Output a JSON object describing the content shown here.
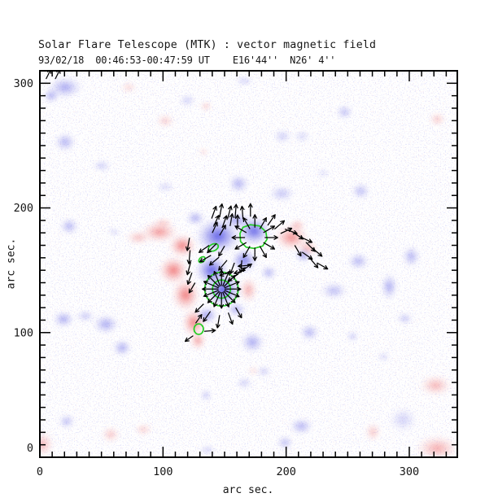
{
  "chart_data": {
    "type": "heatmap",
    "title": "Solar Flare Telescope (MTK) : vector magnetic field",
    "subtitle": "93/02/18  00:46:53-00:47:59 UT    E16'44''  N26' 4''",
    "xlabel": "arc sec.",
    "ylabel": "arc sec.",
    "xlim": [
      0,
      339
    ],
    "ylim": [
      0,
      310
    ],
    "x_ticks": [
      0,
      100,
      200,
      300
    ],
    "y_ticks": [
      0,
      100,
      200,
      300
    ],
    "minor_tick_step": 10,
    "colors": {
      "positive_polarity": "#ee5050",
      "negative_polarity": "#4444e4",
      "contour": "#22cc22",
      "vectors": "#000000",
      "axis": "#000000",
      "background": "#ffffff"
    },
    "region_format": [
      "x_arcsec",
      "y_arcsec",
      "rx_arcsec",
      "ry_arcsec",
      "intensity_0_1"
    ],
    "positive_regions": [
      [
        72.1,
        296.7,
        7,
        5,
        0.3
      ],
      [
        134.9,
        281.6,
        5,
        4,
        0.4
      ],
      [
        101.9,
        269.8,
        8,
        6,
        0.35
      ],
      [
        132.9,
        244.9,
        4,
        3.5,
        0.3
      ],
      [
        322.8,
        271.1,
        7,
        6,
        0.4
      ],
      [
        321.4,
        57.6,
        14,
        9,
        0.5
      ],
      [
        322.8,
        7.2,
        19,
        11,
        0.55
      ],
      [
        2,
        10.5,
        10,
        11,
        0.5
      ],
      [
        57.5,
        18.3,
        8,
        7,
        0.4
      ],
      [
        84,
        22.3,
        8,
        5,
        0.35
      ],
      [
        270.5,
        20.3,
        7,
        8,
        0.4
      ],
      [
        173.3,
        69.4,
        5,
        4,
        0.25
      ],
      [
        97.2,
        180.7,
        16,
        9,
        0.7
      ],
      [
        115.7,
        169.6,
        12,
        10,
        0.85
      ],
      [
        108.5,
        150,
        13,
        12,
        0.88
      ],
      [
        118.4,
        130.3,
        12,
        14,
        0.88
      ],
      [
        125,
        108,
        10,
        12,
        0.85
      ],
      [
        80,
        176.2,
        11,
        6,
        0.45
      ],
      [
        128.3,
        93.6,
        7,
        8,
        0.65
      ],
      [
        100,
        188,
        9,
        4,
        0.4
      ],
      [
        204.4,
        176.2,
        15,
        11,
        0.75
      ],
      [
        217.6,
        167.6,
        9,
        7,
        0.55
      ],
      [
        209,
        186,
        7,
        5,
        0.5
      ],
      [
        169.3,
        134.2,
        8,
        11,
        0.55
      ]
    ],
    "negative_regions": [
      [
        20.5,
        296.7,
        14.5,
        9,
        0.5
      ],
      [
        9.3,
        290.1,
        7,
        6,
        0.5
      ],
      [
        20.5,
        252.8,
        9,
        8,
        0.45
      ],
      [
        50.3,
        233.8,
        8,
        5,
        0.3
      ],
      [
        101.9,
        216.8,
        8,
        4.5,
        0.25
      ],
      [
        23.8,
        185.3,
        8,
        7,
        0.45
      ],
      [
        161.4,
        219.4,
        9,
        8,
        0.45
      ],
      [
        119.7,
        286.2,
        7,
        5,
        0.3
      ],
      [
        166,
        301.9,
        8,
        4,
        0.3
      ],
      [
        197.1,
        257.4,
        8,
        6,
        0.3
      ],
      [
        213,
        257.4,
        7,
        5,
        0.25
      ],
      [
        247.4,
        277,
        7,
        6,
        0.4
      ],
      [
        196.4,
        211.5,
        11,
        7,
        0.35
      ],
      [
        260.6,
        213.5,
        8,
        7,
        0.4
      ],
      [
        230.2,
        227.9,
        6,
        4,
        0.2
      ],
      [
        301.6,
        161.1,
        7.5,
        9,
        0.45
      ],
      [
        283.7,
        136.9,
        7,
        11,
        0.5
      ],
      [
        258.6,
        157.2,
        9,
        7,
        0.45
      ],
      [
        238.8,
        133.6,
        11.5,
        7,
        0.4
      ],
      [
        296.3,
        111.3,
        7,
        5,
        0.35
      ],
      [
        218.9,
        100.2,
        8,
        7,
        0.45
      ],
      [
        254,
        96.9,
        5,
        4.5,
        0.35
      ],
      [
        279.1,
        80.5,
        5.5,
        4,
        0.25
      ],
      [
        172.6,
        92.3,
        10,
        9,
        0.5
      ],
      [
        181.9,
        68.8,
        6,
        5,
        0.3
      ],
      [
        166,
        59.6,
        7,
        5,
        0.3
      ],
      [
        134.9,
        49.8,
        5,
        5,
        0.35
      ],
      [
        212.3,
        24.9,
        10,
        7,
        0.45
      ],
      [
        199.1,
        11.8,
        7,
        6,
        0.4
      ],
      [
        136.2,
        5.9,
        7,
        4,
        0.3
      ],
      [
        295,
        30.1,
        12,
        11,
        0.25
      ],
      [
        19.2,
        110.7,
        9,
        7,
        0.5
      ],
      [
        53.6,
        106.7,
        11,
        8,
        0.5
      ],
      [
        66.8,
        87.8,
        8,
        7,
        0.5
      ],
      [
        37,
        113.3,
        8,
        5,
        0.35
      ],
      [
        21.8,
        28.8,
        7,
        6,
        0.4
      ],
      [
        60.2,
        180.7,
        5,
        4,
        0.25
      ],
      [
        214,
        162,
        7,
        6,
        0.55
      ],
      [
        144.8,
        177.5,
        19,
        15,
        0.9
      ],
      [
        173.9,
        181.4,
        14,
        12,
        0.88
      ],
      [
        139.6,
        150,
        14,
        13,
        0.92
      ],
      [
        148.8,
        134.2,
        15,
        14,
        0.92
      ],
      [
        166,
        157.8,
        11,
        10,
        0.75
      ],
      [
        135.6,
        114,
        9,
        7,
        0.6
      ],
      [
        126.3,
        191.9,
        8,
        6,
        0.5
      ],
      [
        185.8,
        148,
        7,
        6,
        0.45
      ],
      [
        159.4,
        118.5,
        8,
        6,
        0.5
      ],
      [
        160,
        190,
        12,
        6,
        0.6
      ]
    ],
    "contours": [
      {
        "shape": "ellipse",
        "x": 147.5,
        "y": 134.9,
        "rx": 13.6,
        "ry": 13.6,
        "rot": 0
      },
      {
        "shape": "ellipse",
        "x": 147.5,
        "y": 134.9,
        "rx": 7.3,
        "ry": 7.3,
        "rot": 0
      },
      {
        "shape": "polygon",
        "points": [
          [
            165,
            184.5
          ],
          [
            171,
            186.5
          ],
          [
            178.5,
            185.5
          ],
          [
            183.5,
            181
          ],
          [
            184.5,
            175
          ],
          [
            181,
            169.5
          ],
          [
            174,
            167.5
          ],
          [
            167.5,
            168.5
          ],
          [
            163,
            173
          ],
          [
            162.5,
            179.5
          ]
        ]
      },
      {
        "shape": "ellipse",
        "x": 140.9,
        "y": 168.3,
        "rx": 4.2,
        "ry": 2.7,
        "rot": -25
      },
      {
        "shape": "ellipse",
        "x": 131.6,
        "y": 158.5,
        "rx": 2.9,
        "ry": 1.9,
        "rot": -40
      },
      {
        "shape": "ellipse",
        "x": 129,
        "y": 102.8,
        "rx": 3.8,
        "ry": 4.2,
        "rot": 0
      }
    ],
    "vector_format": [
      "x_arcsec",
      "y_arcsec",
      "angle_deg_ccw_from_east",
      "length_arcsec"
    ],
    "vectors": [
      [
        150,
        134.9,
        0,
        12.5
      ],
      [
        149.8,
        135.9,
        22,
        12.5
      ],
      [
        149.3,
        136.7,
        45,
        12.5
      ],
      [
        148.5,
        137.2,
        67,
        12.5
      ],
      [
        147.5,
        137.4,
        90,
        12.5
      ],
      [
        146.5,
        137.2,
        112,
        12.5
      ],
      [
        145.7,
        136.7,
        135,
        12.5
      ],
      [
        145.2,
        135.9,
        157,
        12.5
      ],
      [
        145,
        134.9,
        180,
        12.5
      ],
      [
        145.2,
        133.9,
        202,
        12.5
      ],
      [
        145.7,
        133.1,
        225,
        12.5
      ],
      [
        146.5,
        132.6,
        247,
        12.5
      ],
      [
        147.5,
        132.4,
        270,
        12.5
      ],
      [
        148.5,
        132.6,
        292,
        12.5
      ],
      [
        149.3,
        133.1,
        315,
        12.5
      ],
      [
        149.8,
        133.9,
        337,
        12.5
      ],
      [
        182.6,
        176.2,
        0,
        10
      ],
      [
        181.5,
        180.2,
        30,
        10
      ],
      [
        178.6,
        183.1,
        60,
        10
      ],
      [
        174.6,
        184.2,
        90,
        10
      ],
      [
        170.6,
        183.1,
        120,
        10
      ],
      [
        167.7,
        180.2,
        150,
        10
      ],
      [
        166.6,
        176.2,
        180,
        10
      ],
      [
        167.7,
        172.2,
        210,
        10
      ],
      [
        170.6,
        169.3,
        240,
        10
      ],
      [
        174.6,
        168.2,
        270,
        10
      ],
      [
        178.6,
        169.3,
        300,
        10
      ],
      [
        181.5,
        172.2,
        330,
        10
      ],
      [
        139.5,
        191.5,
        70,
        10
      ],
      [
        146,
        192.5,
        80,
        10.5
      ],
      [
        152.5,
        191.5,
        75,
        10
      ],
      [
        158.5,
        192,
        85,
        10.5
      ],
      [
        165,
        191,
        95,
        10
      ],
      [
        171,
        193,
        90,
        10
      ],
      [
        141,
        185,
        65,
        9.5
      ],
      [
        148,
        184,
        70,
        10
      ],
      [
        154.5,
        185.5,
        80,
        9.5
      ],
      [
        160.5,
        184,
        90,
        10
      ],
      [
        121.5,
        176,
        260,
        10
      ],
      [
        122,
        166,
        265,
        10.5
      ],
      [
        122.5,
        156.5,
        255,
        10
      ],
      [
        123.5,
        148,
        250,
        9.5
      ],
      [
        126,
        140,
        240,
        9
      ],
      [
        137.5,
        170,
        215,
        9.5
      ],
      [
        143.5,
        171.5,
        225,
        10
      ],
      [
        150,
        169.5,
        240,
        9
      ],
      [
        139,
        162,
        210,
        10
      ],
      [
        145.5,
        160.5,
        220,
        9.5
      ],
      [
        152,
        158,
        230,
        10
      ],
      [
        158,
        156,
        250,
        9
      ],
      [
        164,
        158,
        265,
        9.5
      ],
      [
        155,
        149,
        200,
        9
      ],
      [
        161,
        147,
        215,
        9.5
      ],
      [
        167,
        150,
        195,
        9
      ],
      [
        170.5,
        154,
        185,
        9
      ],
      [
        140,
        180,
        65,
        9
      ],
      [
        146,
        178,
        60,
        9
      ],
      [
        199,
        183,
        -20,
        10
      ],
      [
        205,
        181,
        -35,
        10
      ],
      [
        211,
        177,
        -25,
        10.5
      ],
      [
        216,
        172.5,
        -45,
        10
      ],
      [
        221,
        168,
        -40,
        10
      ],
      [
        207,
        170,
        -60,
        9.5
      ],
      [
        213,
        164.5,
        -35,
        9.5
      ],
      [
        219,
        160,
        -50,
        10
      ],
      [
        225,
        156,
        -30,
        9.5
      ],
      [
        185,
        186,
        55,
        10
      ],
      [
        190.5,
        183,
        40,
        10
      ],
      [
        195.5,
        179.5,
        25,
        9.5
      ],
      [
        138.5,
        117,
        235,
        9.5
      ],
      [
        146,
        114,
        260,
        10
      ],
      [
        153,
        116,
        290,
        9.5
      ],
      [
        133,
        123,
        225,
        9
      ],
      [
        159,
        120,
        300,
        9
      ],
      [
        157,
        144,
        40,
        12
      ],
      [
        162.5,
        148.5,
        35,
        11
      ],
      [
        126.5,
        107.5,
        55,
        8
      ],
      [
        133.5,
        101,
        5,
        8.5
      ],
      [
        124.5,
        97.5,
        215,
        7.5
      ],
      [
        5,
        303.5,
        63,
        8
      ],
      [
        12.5,
        303.5,
        63,
        8
      ]
    ]
  }
}
